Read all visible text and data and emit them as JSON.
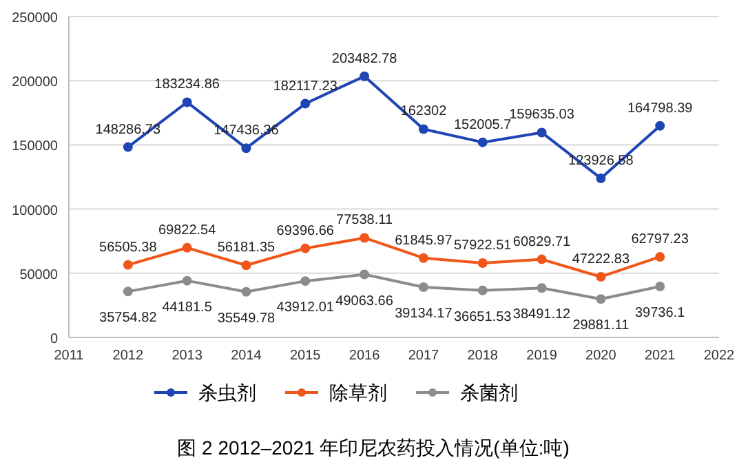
{
  "chart_data": {
    "type": "line",
    "title": "图 2 2012–2021 年印尼农药投入情况(单位:吨)",
    "x": [
      2012,
      2013,
      2014,
      2015,
      2016,
      2017,
      2018,
      2019,
      2020,
      2021
    ],
    "series": [
      {
        "name": "杀虫剂",
        "color": "#1f45b5",
        "values": [
          148286.73,
          183234.86,
          147436.36,
          182117.23,
          203482.78,
          162302,
          152005.7,
          159635.03,
          123926.58,
          164798.39
        ]
      },
      {
        "name": "除草剂",
        "color": "#f0561a",
        "values": [
          56505.38,
          69822.54,
          56181.35,
          69396.66,
          77538.11,
          61845.97,
          57922.51,
          60829.71,
          47222.83,
          62797.23
        ]
      },
      {
        "name": "杀菌剂",
        "color": "#8c8c8c",
        "values": [
          35754.82,
          44181.5,
          35549.78,
          43912.01,
          49063.66,
          39134.17,
          36651.53,
          38491.12,
          29881.11,
          39736.1
        ]
      }
    ],
    "xlim": [
      2011,
      2022
    ],
    "xticks": [
      2011,
      2012,
      2013,
      2014,
      2015,
      2016,
      2017,
      2018,
      2019,
      2020,
      2021,
      2022
    ],
    "ylim": [
      0,
      250000
    ],
    "yticks": [
      0,
      50000,
      100000,
      150000,
      200000,
      250000
    ],
    "grid": "y",
    "legend": "bottom",
    "marker": "circle",
    "line_style": "solid",
    "data_labels": true
  }
}
